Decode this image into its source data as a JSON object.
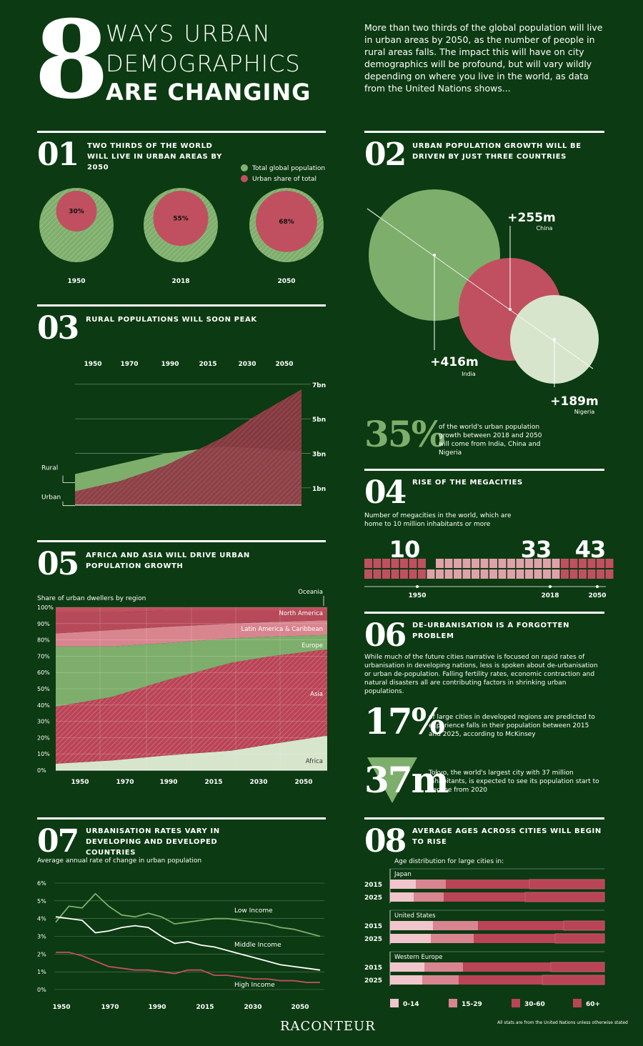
{
  "header": {
    "big_number": "8",
    "title_line1": "WAYS URBAN",
    "title_line2": "DEMOGRAPHICS",
    "title_line3": "ARE CHANGING",
    "intro": "More than two thirds of the global population will live in urban areas by 2050, as the number of people in rural areas falls. The impact this will have on city demographics will be profound, but will vary wildly depending on where you live in the world, as data from the United Nations shows..."
  },
  "colors": {
    "background": "#0c3a12",
    "green": "#7eae6c",
    "pink": "#c0505f",
    "pale": "#d6e5cc",
    "dark_red": "#8b3a44"
  },
  "sections": {
    "s01": {
      "number": "01",
      "title": "Two thirds of the world will live in urban areas by 2050",
      "legend_total": "Total global population",
      "legend_urban": "Urban share of total"
    },
    "s02": {
      "number": "02",
      "title": "Urban population growth will be driven by just three countries",
      "stat_value": "35%",
      "stat_text": "of the world's urban population growth between 2018 and 2050 will come from India, China and Nigeria"
    },
    "s03": {
      "number": "03",
      "title": "Rural populations will soon peak",
      "label_rural": "Rural",
      "label_urban": "Urban"
    },
    "s04": {
      "number": "04",
      "title": "Rise of the megacities",
      "subtitle": "Number of megacities in the world, which are home to 10 million inhabitants or more"
    },
    "s05": {
      "number": "05",
      "title": "Africa and Asia will drive urban population growth",
      "subtitle": "Share of urban dwellers by region"
    },
    "s06": {
      "number": "06",
      "title": "De-urbanisation is a forgotten problem",
      "body": "While much of the future cities narrative is focused on rapid rates of urbanisation in developing nations, less is spoken about de-urbanisation or urban de-population. Falling fertility rates, economic contraction and natural disasters all are contributing factors in shrinking urban populations.",
      "stat1_value": "17%",
      "stat1_text": "of large cities in developed regions are predicted to experience falls in their population between 2015 and 2025, according to McKinsey",
      "stat2_value": "37m",
      "stat2_text": "Tokyo, the world's largest city with 37 million inhabitants, is expected to see its population start to decline from 2020"
    },
    "s07": {
      "number": "07",
      "title": "Urbanisation rates vary in developing and developed countries",
      "subtitle": "Average annual rate of change in urban population"
    },
    "s08": {
      "number": "08",
      "title": "Average ages across cities will begin to rise",
      "subtitle": "Age distribution for large cities in:"
    }
  },
  "footer": {
    "brand": "RACONTEUR",
    "note": "All stats are from the United Nations unless otherwise stated"
  },
  "chart_data": [
    {
      "id": "urban-share-circles",
      "type": "pie",
      "categories": [
        "1950",
        "2018",
        "2050"
      ],
      "series": [
        {
          "name": "Urban share of total",
          "values": [
            30,
            55,
            68
          ]
        }
      ],
      "labels": [
        "30%",
        "55%",
        "68%"
      ]
    },
    {
      "id": "growth-bubbles",
      "type": "scatter",
      "categories": [
        "India",
        "China",
        "Nigeria"
      ],
      "values": [
        416,
        255,
        189
      ],
      "labels": [
        "+416m",
        "+255m",
        "+189m"
      ]
    },
    {
      "id": "rural-urban",
      "type": "area",
      "x": [
        1950,
        2050
      ],
      "x_tick_labels": [
        "1950",
        "1970",
        "1990",
        "2015",
        "2030",
        "2050"
      ],
      "y_tick_labels": [
        "7bn",
        "5bn",
        "3bn",
        "1bn"
      ],
      "series": [
        {
          "name": "Rural",
          "points": [
            [
              1950,
              1.8
            ],
            [
              1970,
              2.4
            ],
            [
              1990,
              3.0
            ],
            [
              2015,
              3.4
            ],
            [
              2030,
              3.3
            ],
            [
              2050,
              3.1
            ]
          ]
        },
        {
          "name": "Urban",
          "points": [
            [
              1950,
              0.8
            ],
            [
              1970,
              1.4
            ],
            [
              1990,
              2.3
            ],
            [
              2015,
              3.9
            ],
            [
              2030,
              5.2
            ],
            [
              2050,
              6.7
            ]
          ]
        }
      ],
      "ylim": [
        0,
        7.2
      ]
    },
    {
      "id": "megacities",
      "type": "bar",
      "categories": [
        "1950",
        "2018",
        "2050"
      ],
      "values": [
        10,
        33,
        43
      ],
      "labels": [
        "10",
        "33",
        "43"
      ]
    },
    {
      "id": "region-share",
      "type": "area",
      "x_tick_labels": [
        "1950",
        "1970",
        "1990",
        "2015",
        "2030",
        "2050"
      ],
      "y_tick_labels": [
        "0%",
        "10%",
        "20%",
        "30%",
        "40%",
        "50%",
        "60%",
        "70%",
        "80%",
        "90%",
        "100%"
      ],
      "boundary_years": [
        1950,
        1970,
        1990,
        2015,
        2030,
        2050
      ],
      "boundaries": {
        "Africa": [
          4,
          6,
          9,
          12,
          16,
          21
        ],
        "Asia": [
          39,
          45,
          55,
          66,
          70,
          74
        ],
        "Europe": [
          76,
          76,
          78,
          81,
          82,
          83
        ],
        "Latin America & Caribbean": [
          84,
          86,
          88,
          90,
          91,
          92
        ],
        "North America": [
          97,
          97,
          98,
          98,
          98,
          98
        ]
      },
      "series_labels": [
        "Oceania",
        "North America",
        "Latin America & Caribbean",
        "Europe",
        "Asia",
        "Africa"
      ],
      "ylim": [
        0,
        100
      ]
    },
    {
      "id": "urbanisation-rates",
      "type": "line",
      "x_tick_labels": [
        "1950",
        "1970",
        "1990",
        "2015",
        "2030",
        "2050"
      ],
      "y_tick_labels": [
        "0%",
        "1%",
        "2%",
        "3%",
        "4%",
        "5%",
        "6%"
      ],
      "x": [
        1950,
        1955,
        1960,
        1965,
        1970,
        1975,
        1980,
        1985,
        1990,
        1995,
        2000,
        2005,
        2010,
        2015,
        2020,
        2025,
        2030,
        2035,
        2040,
        2045,
        2050
      ],
      "series": [
        {
          "name": "Low Income",
          "values": [
            3.8,
            4.7,
            4.6,
            5.4,
            4.7,
            4.2,
            4.1,
            4.3,
            4.1,
            3.7,
            3.8,
            3.9,
            4.0,
            4.0,
            3.9,
            3.8,
            3.7,
            3.5,
            3.4,
            3.2,
            3.0
          ]
        },
        {
          "name": "Middle Income",
          "values": [
            4.1,
            4.0,
            3.9,
            3.2,
            3.3,
            3.5,
            3.6,
            3.5,
            3.0,
            2.6,
            2.7,
            2.5,
            2.4,
            2.2,
            2.0,
            1.8,
            1.6,
            1.4,
            1.3,
            1.2,
            1.1
          ]
        },
        {
          "name": "High Income",
          "values": [
            2.1,
            2.1,
            1.9,
            1.6,
            1.3,
            1.2,
            1.1,
            1.1,
            1.0,
            0.9,
            1.1,
            1.1,
            0.8,
            0.8,
            0.7,
            0.6,
            0.6,
            0.5,
            0.5,
            0.4,
            0.4
          ]
        }
      ],
      "ylim": [
        0,
        6
      ]
    },
    {
      "id": "age-distribution",
      "type": "bar",
      "legend": [
        "0-14",
        "15-29",
        "30-60",
        "60+"
      ],
      "groups": [
        {
          "name": "Japan",
          "rows": [
            {
              "year": "2015",
              "values": [
                12,
                14,
                39,
                35
              ]
            },
            {
              "year": "2025",
              "values": [
                11,
                14,
                38,
                37
              ]
            }
          ]
        },
        {
          "name": "United States",
          "rows": [
            {
              "year": "2015",
              "values": [
                20,
                21,
                40,
                19
              ]
            },
            {
              "year": "2025",
              "values": [
                19,
                20,
                38,
                23
              ]
            }
          ]
        },
        {
          "name": "Western Europe",
          "rows": [
            {
              "year": "2015",
              "values": [
                16,
                18,
                41,
                25
              ]
            },
            {
              "year": "2025",
              "values": [
                15,
                17,
                39,
                29
              ]
            }
          ]
        }
      ]
    }
  ]
}
